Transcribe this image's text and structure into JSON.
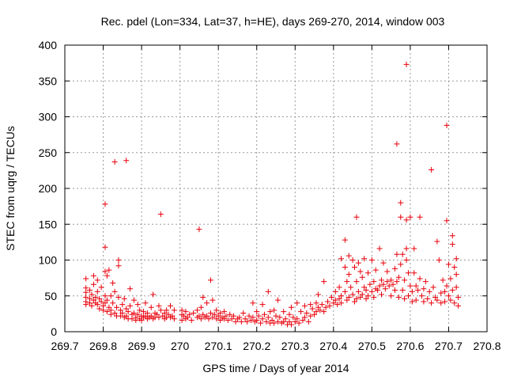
{
  "chart_data": {
    "type": "scatter",
    "title": "Rec. pdel (Lon=334, Lat=37, h=HE), days 269-270, 2014, window 003",
    "xlabel": "GPS time / Days of year 2014",
    "ylabel": "STEC from uqrg / TECUs",
    "xlim": [
      269.7,
      270.8
    ],
    "ylim": [
      0,
      400
    ],
    "x_ticks": [
      269.7,
      269.8,
      269.9,
      270.0,
      270.1,
      270.2,
      270.3,
      270.4,
      270.5,
      270.6,
      270.7,
      270.8
    ],
    "x_tick_labels": [
      "269.7",
      "269.8",
      "269.9",
      "270",
      "270.1",
      "270.2",
      "270.3",
      "270.4",
      "270.5",
      "270.6",
      "270.7",
      "270.8"
    ],
    "y_ticks": [
      0,
      50,
      100,
      150,
      200,
      250,
      300,
      350,
      400
    ],
    "y_tick_labels": [
      "0",
      "50",
      "100",
      "150",
      "200",
      "250",
      "300",
      "350",
      "400"
    ],
    "grid": true,
    "marker": "plus",
    "series_color": "#e8000b",
    "points": [
      [
        269.755,
        74
      ],
      [
        269.755,
        61
      ],
      [
        269.755,
        55
      ],
      [
        269.755,
        48
      ],
      [
        269.755,
        42
      ],
      [
        269.755,
        38
      ],
      [
        269.765,
        58
      ],
      [
        269.765,
        46
      ],
      [
        269.765,
        40
      ],
      [
        269.77,
        52
      ],
      [
        269.77,
        36
      ],
      [
        269.775,
        78
      ],
      [
        269.775,
        66
      ],
      [
        269.775,
        44
      ],
      [
        269.78,
        40
      ],
      [
        269.78,
        48
      ],
      [
        269.785,
        72
      ],
      [
        269.785,
        56
      ],
      [
        269.785,
        38
      ],
      [
        269.79,
        46
      ],
      [
        269.79,
        32
      ],
      [
        269.795,
        62
      ],
      [
        269.795,
        42
      ],
      [
        269.8,
        36
      ],
      [
        269.8,
        30
      ],
      [
        269.805,
        178
      ],
      [
        269.805,
        118
      ],
      [
        269.805,
        84
      ],
      [
        269.805,
        50
      ],
      [
        269.805,
        40
      ],
      [
        269.81,
        78
      ],
      [
        269.81,
        44
      ],
      [
        269.81,
        28
      ],
      [
        269.815,
        86
      ],
      [
        269.815,
        34
      ],
      [
        269.82,
        50
      ],
      [
        269.82,
        30
      ],
      [
        269.82,
        24
      ],
      [
        269.825,
        68
      ],
      [
        269.825,
        40
      ],
      [
        269.83,
        237
      ],
      [
        269.83,
        56
      ],
      [
        269.83,
        26
      ],
      [
        269.835,
        34
      ],
      [
        269.835,
        22
      ],
      [
        269.84,
        100
      ],
      [
        269.84,
        92
      ],
      [
        269.84,
        48
      ],
      [
        269.845,
        30
      ],
      [
        269.845,
        22
      ],
      [
        269.85,
        38
      ],
      [
        269.85,
        26
      ],
      [
        269.855,
        46
      ],
      [
        269.855,
        20
      ],
      [
        269.86,
        239
      ],
      [
        269.86,
        32
      ],
      [
        269.86,
        22
      ],
      [
        269.865,
        28
      ],
      [
        269.865,
        18
      ],
      [
        269.87,
        60
      ],
      [
        269.87,
        36
      ],
      [
        269.875,
        24
      ],
      [
        269.875,
        18
      ],
      [
        269.88,
        44
      ],
      [
        269.88,
        26
      ],
      [
        269.885,
        20
      ],
      [
        269.885,
        16
      ],
      [
        269.89,
        38
      ],
      [
        269.89,
        24
      ],
      [
        269.895,
        30
      ],
      [
        269.895,
        18
      ],
      [
        269.9,
        22
      ],
      [
        269.9,
        16
      ],
      [
        269.905,
        28
      ],
      [
        269.905,
        20
      ],
      [
        269.91,
        40
      ],
      [
        269.91,
        22
      ],
      [
        269.915,
        26
      ],
      [
        269.915,
        18
      ],
      [
        269.92,
        20
      ],
      [
        269.925,
        34
      ],
      [
        269.925,
        22
      ],
      [
        269.93,
        52
      ],
      [
        269.93,
        18
      ],
      [
        269.935,
        26
      ],
      [
        269.935,
        20
      ],
      [
        269.94,
        24
      ],
      [
        269.945,
        36
      ],
      [
        269.945,
        20
      ],
      [
        269.95,
        164
      ],
      [
        269.95,
        30
      ],
      [
        269.955,
        22
      ],
      [
        269.96,
        26
      ],
      [
        269.96,
        18
      ],
      [
        269.965,
        30
      ],
      [
        269.965,
        20
      ],
      [
        269.97,
        24
      ],
      [
        269.975,
        36
      ],
      [
        269.975,
        20
      ],
      [
        269.98,
        22
      ],
      [
        269.985,
        30
      ],
      [
        269.985,
        18
      ],
      [
        270.005,
        30
      ],
      [
        270.005,
        24
      ],
      [
        270.005,
        16
      ],
      [
        270.01,
        22
      ],
      [
        270.015,
        28
      ],
      [
        270.015,
        18
      ],
      [
        270.02,
        20
      ],
      [
        270.025,
        24
      ],
      [
        270.03,
        16
      ],
      [
        270.035,
        26
      ],
      [
        270.045,
        30
      ],
      [
        270.045,
        20
      ],
      [
        270.05,
        143
      ],
      [
        270.05,
        22
      ],
      [
        270.055,
        34
      ],
      [
        270.055,
        18
      ],
      [
        270.06,
        48
      ],
      [
        270.06,
        24
      ],
      [
        270.065,
        20
      ],
      [
        270.07,
        40
      ],
      [
        270.07,
        22
      ],
      [
        270.075,
        18
      ],
      [
        270.08,
        72
      ],
      [
        270.08,
        26
      ],
      [
        270.085,
        44
      ],
      [
        270.085,
        20
      ],
      [
        270.09,
        24
      ],
      [
        270.095,
        30
      ],
      [
        270.095,
        18
      ],
      [
        270.1,
        22
      ],
      [
        270.105,
        26
      ],
      [
        270.105,
        16
      ],
      [
        270.11,
        20
      ],
      [
        270.115,
        28
      ],
      [
        270.115,
        18
      ],
      [
        270.12,
        22
      ],
      [
        270.125,
        16
      ],
      [
        270.13,
        24
      ],
      [
        270.135,
        18
      ],
      [
        270.14,
        22
      ],
      [
        270.145,
        14
      ],
      [
        270.15,
        18
      ],
      [
        270.155,
        20
      ],
      [
        270.16,
        14
      ],
      [
        270.165,
        26
      ],
      [
        270.17,
        18
      ],
      [
        270.175,
        14
      ],
      [
        270.18,
        22
      ],
      [
        270.185,
        16
      ],
      [
        270.19,
        40
      ],
      [
        270.19,
        20
      ],
      [
        270.195,
        14
      ],
      [
        270.2,
        28
      ],
      [
        270.2,
        16
      ],
      [
        270.205,
        22
      ],
      [
        270.21,
        12
      ],
      [
        270.215,
        38
      ],
      [
        270.215,
        18
      ],
      [
        270.22,
        24
      ],
      [
        270.225,
        14
      ],
      [
        270.23,
        56
      ],
      [
        270.23,
        20
      ],
      [
        270.235,
        28
      ],
      [
        270.235,
        12
      ],
      [
        270.24,
        16
      ],
      [
        270.245,
        30
      ],
      [
        270.245,
        12
      ],
      [
        270.25,
        22
      ],
      [
        270.255,
        44
      ],
      [
        270.255,
        14
      ],
      [
        270.26,
        20
      ],
      [
        270.265,
        12
      ],
      [
        270.27,
        28
      ],
      [
        270.27,
        14
      ],
      [
        270.275,
        18
      ],
      [
        270.28,
        10
      ],
      [
        270.285,
        24
      ],
      [
        270.285,
        14
      ],
      [
        270.29,
        34
      ],
      [
        270.29,
        10
      ],
      [
        270.295,
        20
      ],
      [
        270.3,
        14
      ],
      [
        270.305,
        40
      ],
      [
        270.305,
        18
      ],
      [
        270.31,
        12
      ],
      [
        270.315,
        28
      ],
      [
        270.32,
        16
      ],
      [
        270.325,
        36
      ],
      [
        270.325,
        20
      ],
      [
        270.33,
        26
      ],
      [
        270.335,
        14
      ],
      [
        270.34,
        38
      ],
      [
        270.34,
        22
      ],
      [
        270.345,
        32
      ],
      [
        270.35,
        24
      ],
      [
        270.355,
        40
      ],
      [
        270.355,
        28
      ],
      [
        270.36,
        52
      ],
      [
        270.36,
        34
      ],
      [
        270.365,
        30
      ],
      [
        270.37,
        38
      ],
      [
        270.375,
        70
      ],
      [
        270.375,
        28
      ],
      [
        270.38,
        34
      ],
      [
        270.385,
        42
      ],
      [
        270.39,
        36
      ],
      [
        270.395,
        48
      ],
      [
        270.4,
        40
      ],
      [
        270.405,
        56
      ],
      [
        270.405,
        44
      ],
      [
        270.41,
        38
      ],
      [
        270.415,
        62
      ],
      [
        270.415,
        46
      ],
      [
        270.42,
        102
      ],
      [
        270.42,
        50
      ],
      [
        270.42,
        40
      ],
      [
        270.43,
        128
      ],
      [
        270.43,
        90
      ],
      [
        270.43,
        56
      ],
      [
        270.435,
        70
      ],
      [
        270.435,
        44
      ],
      [
        270.44,
        106
      ],
      [
        270.44,
        80
      ],
      [
        270.44,
        48
      ],
      [
        270.445,
        62
      ],
      [
        270.45,
        100
      ],
      [
        270.45,
        52
      ],
      [
        270.455,
        90
      ],
      [
        270.455,
        42
      ],
      [
        270.46,
        160
      ],
      [
        270.46,
        70
      ],
      [
        270.46,
        46
      ],
      [
        270.465,
        96
      ],
      [
        270.465,
        56
      ],
      [
        270.47,
        84
      ],
      [
        270.47,
        48
      ],
      [
        270.475,
        76
      ],
      [
        270.475,
        52
      ],
      [
        270.48,
        102
      ],
      [
        270.48,
        62
      ],
      [
        270.485,
        58
      ],
      [
        270.485,
        46
      ],
      [
        270.49,
        82
      ],
      [
        270.49,
        50
      ],
      [
        270.495,
        66
      ],
      [
        270.5,
        100
      ],
      [
        270.5,
        56
      ],
      [
        270.505,
        70
      ],
      [
        270.505,
        48
      ],
      [
        270.51,
        86
      ],
      [
        270.51,
        60
      ],
      [
        270.515,
        58
      ],
      [
        270.52,
        116
      ],
      [
        270.52,
        64
      ],
      [
        270.525,
        72
      ],
      [
        270.525,
        52
      ],
      [
        270.53,
        96
      ],
      [
        270.53,
        66
      ],
      [
        270.535,
        60
      ],
      [
        270.54,
        84
      ],
      [
        270.54,
        70
      ],
      [
        270.545,
        64
      ],
      [
        270.55,
        72
      ],
      [
        270.55,
        50
      ],
      [
        270.555,
        66
      ],
      [
        270.56,
        88
      ],
      [
        270.56,
        58
      ],
      [
        270.565,
        262
      ],
      [
        270.565,
        108
      ],
      [
        270.565,
        70
      ],
      [
        270.57,
        76
      ],
      [
        270.57,
        48
      ],
      [
        270.575,
        180
      ],
      [
        270.575,
        160
      ],
      [
        270.575,
        94
      ],
      [
        270.58,
        108
      ],
      [
        270.58,
        58
      ],
      [
        270.585,
        72
      ],
      [
        270.585,
        46
      ],
      [
        270.59,
        373
      ],
      [
        270.59,
        156
      ],
      [
        270.59,
        116
      ],
      [
        270.59,
        100
      ],
      [
        270.595,
        82
      ],
      [
        270.595,
        50
      ],
      [
        270.6,
        160
      ],
      [
        270.6,
        64
      ],
      [
        270.605,
        56
      ],
      [
        270.605,
        42
      ],
      [
        270.61,
        116
      ],
      [
        270.61,
        82
      ],
      [
        270.615,
        64
      ],
      [
        270.615,
        44
      ],
      [
        270.62,
        58
      ],
      [
        270.625,
        160
      ],
      [
        270.625,
        74
      ],
      [
        270.63,
        50
      ],
      [
        270.635,
        60
      ],
      [
        270.635,
        42
      ],
      [
        270.64,
        70
      ],
      [
        270.645,
        46
      ],
      [
        270.65,
        56
      ],
      [
        270.655,
        226
      ],
      [
        270.655,
        40
      ],
      [
        270.66,
        62
      ],
      [
        270.665,
        48
      ],
      [
        270.67,
        126
      ],
      [
        270.67,
        44
      ],
      [
        270.675,
        100
      ],
      [
        270.68,
        54
      ],
      [
        270.68,
        40
      ],
      [
        270.685,
        72
      ],
      [
        270.69,
        56
      ],
      [
        270.69,
        42
      ],
      [
        270.695,
        288
      ],
      [
        270.695,
        155
      ],
      [
        270.695,
        64
      ],
      [
        270.7,
        94
      ],
      [
        270.7,
        50
      ],
      [
        270.705,
        74
      ],
      [
        270.705,
        44
      ],
      [
        270.71,
        134
      ],
      [
        270.71,
        122
      ],
      [
        270.71,
        58
      ],
      [
        270.715,
        90
      ],
      [
        270.715,
        40
      ],
      [
        270.72,
        102
      ],
      [
        270.72,
        80
      ],
      [
        270.72,
        62
      ],
      [
        270.725,
        48
      ],
      [
        270.725,
        36
      ]
    ]
  }
}
